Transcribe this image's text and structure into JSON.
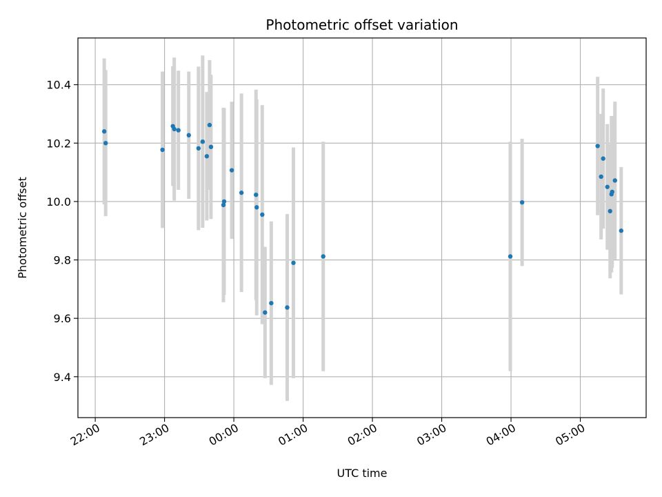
{
  "chart_data": {
    "type": "scatter",
    "title": "Photometric offset variation",
    "xlabel": "UTC time",
    "ylabel": "Photometric offset",
    "x_unit": "hours since midnight UTC",
    "xlim": [
      -2.25,
      5.95
    ],
    "ylim": [
      9.26,
      10.56
    ],
    "x_ticks": [
      {
        "value": -2,
        "label": "22:00"
      },
      {
        "value": -1,
        "label": "23:00"
      },
      {
        "value": 0,
        "label": "00:00"
      },
      {
        "value": 1,
        "label": "01:00"
      },
      {
        "value": 2,
        "label": "02:00"
      },
      {
        "value": 3,
        "label": "03:00"
      },
      {
        "value": 4,
        "label": "04:00"
      },
      {
        "value": 5,
        "label": "05:00"
      }
    ],
    "y_ticks": [
      {
        "value": 9.4,
        "label": "9.4"
      },
      {
        "value": 9.6,
        "label": "9.6"
      },
      {
        "value": 9.8,
        "label": "9.8"
      },
      {
        "value": 10.0,
        "label": "10.0"
      },
      {
        "value": 10.2,
        "label": "10.2"
      },
      {
        "value": 10.4,
        "label": "10.4"
      }
    ],
    "grid": true,
    "point_color": "#1f77b4",
    "errorbar_color": "#d3d3d3",
    "points": [
      {
        "x": -1.87,
        "y": 10.24,
        "err": 0.25
      },
      {
        "x": -1.85,
        "y": 10.2,
        "err": 0.25
      },
      {
        "x": -1.03,
        "y": 10.177,
        "err": 0.268
      },
      {
        "x": -0.88,
        "y": 10.258,
        "err": 0.205
      },
      {
        "x": -0.86,
        "y": 10.248,
        "err": 0.245
      },
      {
        "x": -0.8,
        "y": 10.244,
        "err": 0.204
      },
      {
        "x": -0.65,
        "y": 10.227,
        "err": 0.218
      },
      {
        "x": -0.51,
        "y": 10.182,
        "err": 0.28
      },
      {
        "x": -0.45,
        "y": 10.205,
        "err": 0.295
      },
      {
        "x": -0.39,
        "y": 10.155,
        "err": 0.22
      },
      {
        "x": -0.35,
        "y": 10.262,
        "err": 0.222
      },
      {
        "x": -0.33,
        "y": 10.187,
        "err": 0.247
      },
      {
        "x": -0.15,
        "y": 9.988,
        "err": 0.333
      },
      {
        "x": -0.14,
        "y": 10.0,
        "err": 0.32
      },
      {
        "x": -0.03,
        "y": 10.107,
        "err": 0.235
      },
      {
        "x": 0.11,
        "y": 10.03,
        "err": 0.34
      },
      {
        "x": 0.32,
        "y": 10.023,
        "err": 0.36
      },
      {
        "x": 0.33,
        "y": 9.98,
        "err": 0.37
      },
      {
        "x": 0.41,
        "y": 9.955,
        "err": 0.375
      },
      {
        "x": 0.45,
        "y": 9.62,
        "err": 0.225
      },
      {
        "x": 0.54,
        "y": 9.652,
        "err": 0.28
      },
      {
        "x": 0.77,
        "y": 9.637,
        "err": 0.32
      },
      {
        "x": 0.86,
        "y": 9.79,
        "err": 0.395
      },
      {
        "x": 1.29,
        "y": 9.812,
        "err": 0.393
      },
      {
        "x": 3.99,
        "y": 9.812,
        "err": 0.393
      },
      {
        "x": 4.16,
        "y": 9.997,
        "err": 0.218
      },
      {
        "x": 5.25,
        "y": 10.19,
        "err": 0.237
      },
      {
        "x": 5.3,
        "y": 10.085,
        "err": 0.215
      },
      {
        "x": 5.33,
        "y": 10.147,
        "err": 0.24
      },
      {
        "x": 5.39,
        "y": 10.05,
        "err": 0.215
      },
      {
        "x": 5.43,
        "y": 9.967,
        "err": 0.23
      },
      {
        "x": 5.45,
        "y": 10.025,
        "err": 0.268
      },
      {
        "x": 5.46,
        "y": 10.033,
        "err": 0.26
      },
      {
        "x": 5.5,
        "y": 10.072,
        "err": 0.27
      },
      {
        "x": 5.59,
        "y": 9.9,
        "err": 0.218
      }
    ]
  }
}
